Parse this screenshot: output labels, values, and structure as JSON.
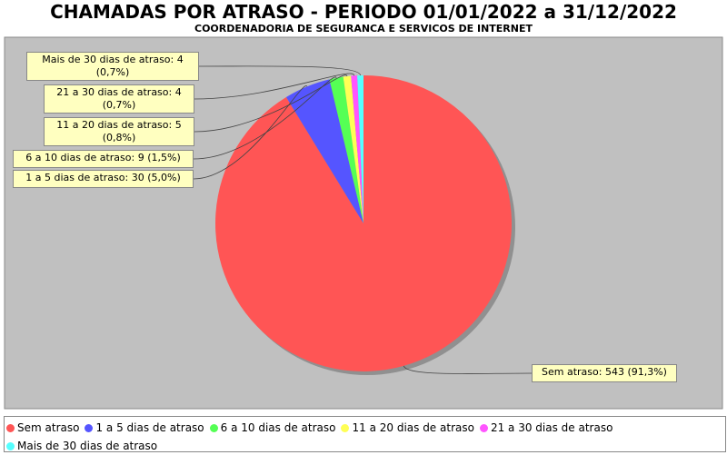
{
  "chart_data": {
    "type": "pie",
    "title": "CHAMADAS POR ATRASO - PERIODO 01/01/2022 a 31/12/2022",
    "subtitle": "COORDENADORIA DE SEGURANCA E SERVICOS DE INTERNET",
    "categories": [
      "Sem atraso",
      "1 a 5 dias de atraso",
      "6 a 10 dias de atraso",
      "11 a 20 dias de atraso",
      "21 a 30 dias de atraso",
      "Mais de 30 dias de atraso"
    ],
    "values": [
      543,
      30,
      9,
      5,
      4,
      4
    ],
    "value_labels": [
      "Sem atraso: 543 (91,3%)",
      "1 a 5 dias de atraso: 30 (5,0%)",
      "6 a 10 dias de atraso: 9 (1,5%)",
      "11 a 20 dias de atraso: 5 (0,8%)",
      "21 a 30 dias de atraso: 4 (0,7%)",
      "Mais de 30 dias de atraso: 4 (0,7%)"
    ],
    "colors": [
      "#ff5555",
      "#5555ff",
      "#55ff55",
      "#ffff55",
      "#ff55ff",
      "#55ffff"
    ],
    "start_angle": 90,
    "direction": "clockwise",
    "legend": "bottom"
  }
}
